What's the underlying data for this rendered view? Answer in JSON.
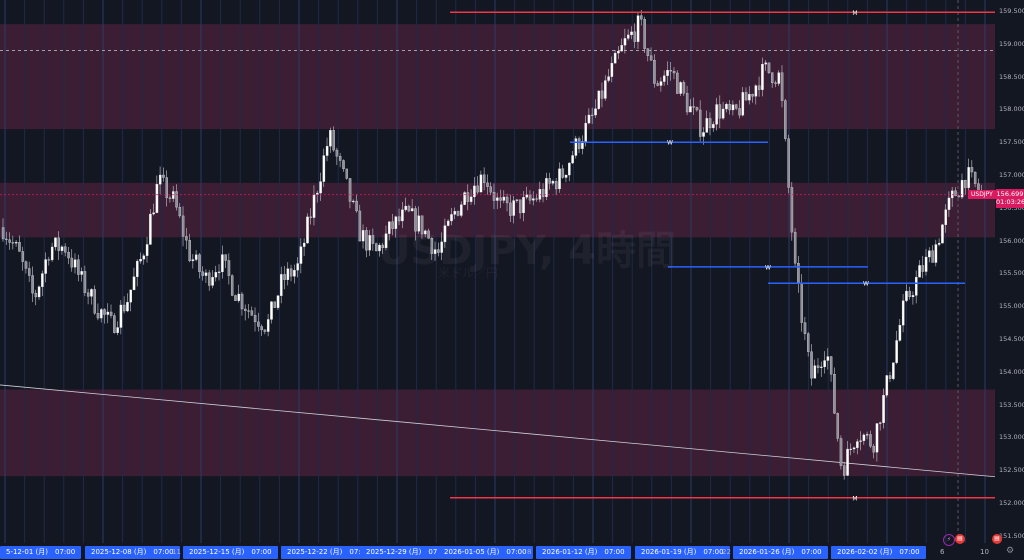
{
  "watermark": {
    "symbol_interval": "USDJPY, 4時間",
    "description": "米ドル／円"
  },
  "colors": {
    "background": "#131722",
    "zone": "#3b1e34",
    "red_level": "#f23645",
    "blue_level": "#2962ff",
    "accent": "#d81b60",
    "day_line": "#1e2a4a"
  },
  "price_axis": {
    "labels": [
      "159.500",
      "159.000",
      "158.500",
      "158.000",
      "157.500",
      "157.000",
      "156.500",
      "156.000",
      "155.500",
      "155.000",
      "154.500",
      "154.000",
      "153.500",
      "153.000",
      "152.500",
      "152.000",
      "151.500"
    ],
    "symbol_tag": "USDJPY",
    "last_price": "156.699",
    "countdown": "01:03:26"
  },
  "time_axis": {
    "labels": [
      "5-12-01 (月)　07:00",
      "2025-12-08 (月)　07:00",
      "11",
      "2025-12-15 (月)　07:00",
      "2025-12-22 (月)　07:00",
      "2025-12-29 (月)　07:00",
      "2026-01-05 (月)　07:00",
      "8",
      "2026-01-12 (月)　07:00",
      "2026-01-19 (月)　07:00",
      "22",
      "2026-01-26 (月)　07:00",
      "2026-02-02 (月)　07:00",
      "6",
      "10"
    ]
  },
  "chart_data": {
    "type": "candlestick",
    "symbol": "USDJPY",
    "interval": "4時間",
    "ylim": [
      151.3,
      159.65
    ],
    "approx_close_path": [
      156.2,
      155.8,
      155.1,
      155.9,
      155.9,
      155.4,
      155.0,
      154.7,
      155.1,
      155.8,
      156.9,
      156.6,
      155.8,
      155.4,
      155.7,
      155.2,
      154.9,
      154.7,
      155.4,
      155.6,
      156.6,
      157.6,
      156.9,
      156.1,
      155.8,
      156.2,
      156.4,
      156.2,
      155.8,
      156.4,
      156.8,
      157.0,
      156.5,
      156.5,
      156.6,
      156.8,
      157.0,
      157.5,
      157.9,
      158.5,
      159.0,
      159.3,
      158.4,
      158.6,
      158.1,
      157.7,
      158.0,
      157.9,
      158.2,
      158.6,
      158.5,
      155.5,
      153.9,
      154.4,
      152.5,
      153.1,
      152.9,
      153.9,
      155.0,
      155.5,
      155.9,
      156.6,
      157.0,
      156.7
    ],
    "zones": [
      [
        157.7,
        159.3
      ],
      [
        156.05,
        156.88
      ],
      [
        152.41,
        153.73
      ]
    ],
    "red_levels": [
      {
        "price": 159.48,
        "marker": "M"
      },
      {
        "price": 152.08,
        "marker": "M"
      }
    ],
    "blue_levels": [
      {
        "price": 157.5,
        "marker": "W"
      },
      {
        "price": 155.6,
        "marker": "W"
      },
      {
        "price": 155.35,
        "marker": "W"
      }
    ],
    "dashed_level": 158.9,
    "trendline": [
      153.8,
      152.4
    ]
  }
}
